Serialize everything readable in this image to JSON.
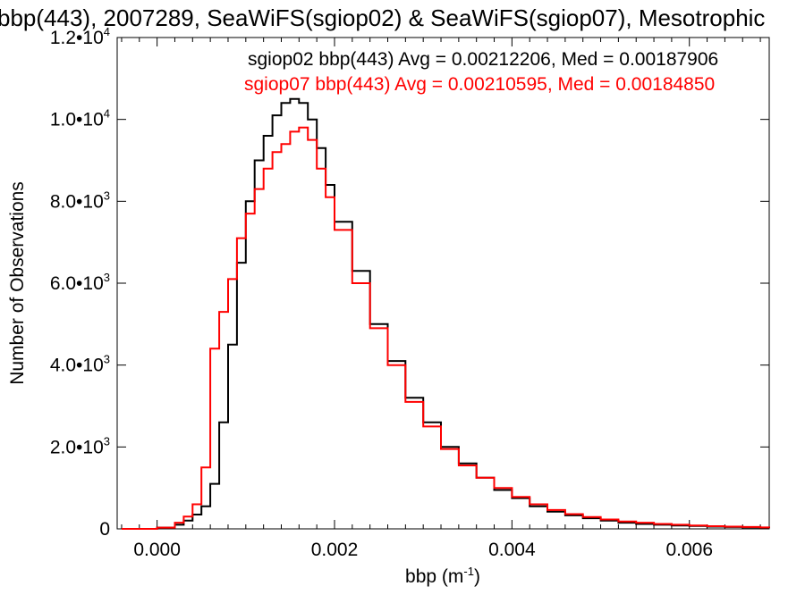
{
  "chart_data": {
    "type": "line",
    "title": "bbp(443), 2007289, SeaWiFS(sgiop02) & SeaWiFS(sgiop07), Mesotrophic",
    "xlabel": "bbp (m",
    "xlabel_sup": "-1",
    "xlabel_close": ")",
    "ylabel": "Number of Observations",
    "xlim": [
      -0.00045,
      0.0069
    ],
    "ylim": [
      0,
      12000
    ],
    "x_ticks": [
      {
        "value": 0.0,
        "label": "0.000"
      },
      {
        "value": 0.002,
        "label": "0.002"
      },
      {
        "value": 0.004,
        "label": "0.004"
      },
      {
        "value": 0.006,
        "label": "0.006"
      }
    ],
    "y_ticks": [
      {
        "value": 0,
        "mant": "0",
        "exp": ""
      },
      {
        "value": 2000,
        "mant": "2.0•10",
        "exp": "3"
      },
      {
        "value": 4000,
        "mant": "4.0•10",
        "exp": "3"
      },
      {
        "value": 6000,
        "mant": "6.0•10",
        "exp": "3"
      },
      {
        "value": 8000,
        "mant": "8.0•10",
        "exp": "3"
      },
      {
        "value": 10000,
        "mant": "1.0•10",
        "exp": "4"
      },
      {
        "value": 12000,
        "mant": "1.2•10",
        "exp": "4"
      }
    ],
    "grid": false,
    "legend_position": "top-right",
    "series": [
      {
        "name": "sgiop02",
        "legend_text": "sgiop02 bbp(443) Avg = 0.00212206, Med = 0.00187906",
        "color": "#000000",
        "x": [
          -0.0004,
          -0.0002,
          0.0,
          0.0002,
          0.0003,
          0.0004,
          0.0005,
          0.0006,
          0.0007,
          0.0008,
          0.0009,
          0.001,
          0.0011,
          0.0012,
          0.0013,
          0.0014,
          0.0015,
          0.0016,
          0.0017,
          0.0018,
          0.0019,
          0.002,
          0.0022,
          0.0024,
          0.0026,
          0.0028,
          0.003,
          0.0032,
          0.0034,
          0.0036,
          0.0038,
          0.004,
          0.0042,
          0.0044,
          0.0046,
          0.0048,
          0.005,
          0.0052,
          0.0054,
          0.0056,
          0.0058,
          0.006,
          0.0062,
          0.0064,
          0.0066,
          0.0068,
          0.0069
        ],
        "y": [
          0,
          0,
          30,
          100,
          200,
          350,
          550,
          1100,
          2600,
          4500,
          6500,
          8000,
          9000,
          9600,
          10100,
          10400,
          10500,
          10400,
          10000,
          9300,
          8400,
          7500,
          6300,
          5000,
          4100,
          3200,
          2600,
          2000,
          1600,
          1250,
          950,
          750,
          550,
          420,
          330,
          260,
          200,
          150,
          120,
          100,
          80,
          70,
          55,
          45,
          35,
          25,
          20
        ]
      },
      {
        "name": "sgiop07",
        "legend_text": "sgiop07 bbp(443) Avg = 0.00210595, Med = 0.00184850",
        "color": "#ff0000",
        "x": [
          -0.0004,
          -0.0002,
          0.0,
          0.0002,
          0.0003,
          0.0004,
          0.0005,
          0.0006,
          0.0007,
          0.0008,
          0.0009,
          0.001,
          0.0011,
          0.0012,
          0.0013,
          0.0014,
          0.0015,
          0.0016,
          0.0017,
          0.0018,
          0.0019,
          0.002,
          0.0022,
          0.0024,
          0.0026,
          0.0028,
          0.003,
          0.0032,
          0.0034,
          0.0036,
          0.0038,
          0.004,
          0.0042,
          0.0044,
          0.0046,
          0.0048,
          0.005,
          0.0052,
          0.0054,
          0.0056,
          0.0058,
          0.006,
          0.0062,
          0.0064,
          0.0066,
          0.0068,
          0.0069
        ],
        "y": [
          0,
          0,
          30,
          150,
          300,
          600,
          1500,
          4400,
          5300,
          6100,
          7100,
          7700,
          8300,
          8800,
          9200,
          9400,
          9700,
          9800,
          9500,
          8800,
          8100,
          7300,
          6000,
          4900,
          4000,
          3100,
          2500,
          1950,
          1550,
          1250,
          1000,
          780,
          600,
          460,
          360,
          290,
          230,
          180,
          150,
          120,
          100,
          80,
          65,
          55,
          45,
          35,
          28
        ]
      }
    ]
  }
}
